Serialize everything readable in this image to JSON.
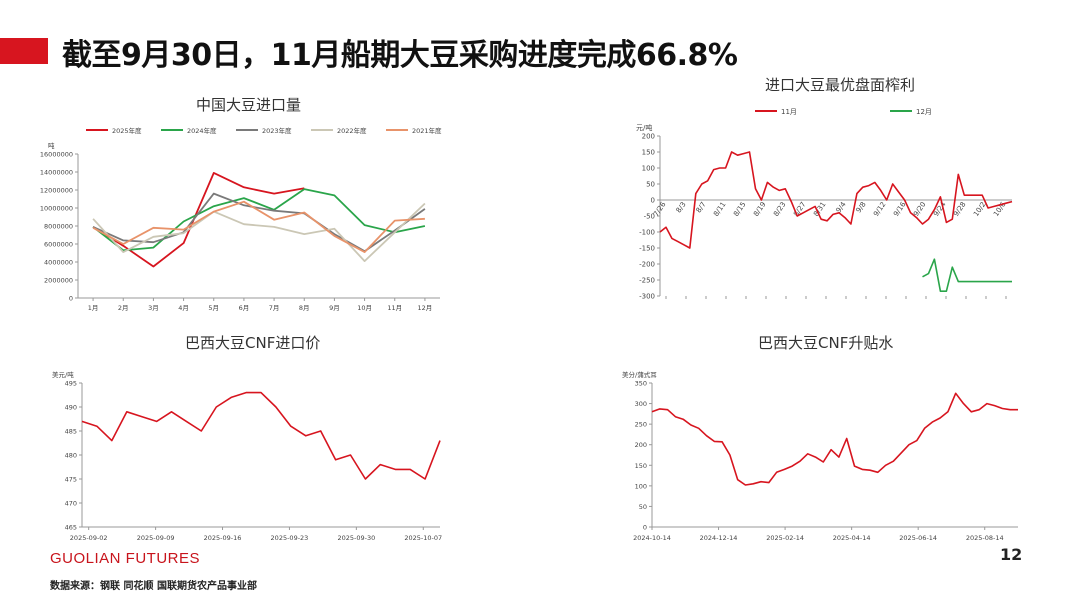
{
  "header": {
    "title": "截至9月30日，11月船期大豆采购进度完成66.8%",
    "accent_color": "#d7151f"
  },
  "footer": {
    "brand": "GUOLIAN FUTURES",
    "source": "数据来源：钢联 同花顺 国联期货农产品事业部",
    "page_number": "12"
  },
  "chart_data": [
    {
      "type": "line",
      "title": "中国大豆进口量",
      "ylabel": "吨",
      "categories": [
        "1月",
        "2月",
        "3月",
        "4月",
        "5月",
        "6月",
        "7月",
        "8月",
        "9月",
        "10月",
        "11月",
        "12月"
      ],
      "ylim": [
        0,
        16000000
      ],
      "yticks": [
        "0",
        "2000000",
        "4000000",
        "6000000",
        "8000000",
        "10000000",
        "12000000",
        "14000000",
        "16000000"
      ],
      "legend": "top",
      "series": [
        {
          "name": "2025年度",
          "color": "#d7151f",
          "values": [
            7900000,
            5800000,
            3500000,
            6100000,
            13900000,
            12300000,
            11600000,
            12200000,
            null,
            null,
            null,
            null
          ]
        },
        {
          "name": "2024年度",
          "color": "#2aa54a",
          "values": [
            7900000,
            5300000,
            5600000,
            8500000,
            10200000,
            11100000,
            9800000,
            12100000,
            11400000,
            8100000,
            7300000,
            8000000
          ]
        },
        {
          "name": "2023年度",
          "color": "#7a7a7a",
          "values": [
            7900000,
            6400000,
            6200000,
            7300000,
            11600000,
            10300000,
            9700000,
            9400000,
            7100000,
            5200000,
            7500000,
            9900000
          ]
        },
        {
          "name": "2022年度",
          "color": "#cbc7b5",
          "values": [
            8800000,
            5100000,
            6800000,
            7200000,
            9600000,
            8200000,
            7900000,
            7100000,
            7700000,
            4100000,
            7300000,
            10500000
          ]
        },
        {
          "name": "2021年度",
          "color": "#e8936a",
          "values": [
            7800000,
            6000000,
            7800000,
            7600000,
            9600000,
            10700000,
            8700000,
            9500000,
            6900000,
            5100000,
            8600000,
            8800000
          ]
        }
      ]
    },
    {
      "type": "line",
      "title": "进口大豆最优盘面榨利",
      "ylabel": "元/吨",
      "ylim": [
        -300,
        200
      ],
      "yticks": [
        "-300",
        "-250",
        "-200",
        "-150",
        "-100",
        "-50",
        "0",
        "50",
        "100",
        "150",
        "200"
      ],
      "xticks": [
        "7/26",
        "8/3",
        "8/7",
        "8/11",
        "8/15",
        "8/19",
        "8/23",
        "8/27",
        "8/31",
        "9/4",
        "9/8",
        "9/12",
        "9/16",
        "9/20",
        "9/24",
        "9/28",
        "10/2",
        "10/6"
      ],
      "legend": "top",
      "series": [
        {
          "name": "11月",
          "color": "#d7151f",
          "values": [
            -100,
            -85,
            -120,
            -130,
            -140,
            -150,
            20,
            50,
            60,
            95,
            100,
            100,
            150,
            140,
            145,
            150,
            35,
            0,
            55,
            40,
            30,
            35,
            -5,
            -50,
            -40,
            -30,
            -20,
            -60,
            -65,
            -45,
            -40,
            -55,
            -75,
            20,
            40,
            45,
            55,
            30,
            0,
            50,
            25,
            0,
            -40,
            -55,
            -75,
            -60,
            -30,
            10,
            -70,
            -60,
            80,
            15,
            15,
            15,
            15,
            -25,
            -20,
            -15,
            -10,
            -5
          ]
        },
        {
          "name": "12月",
          "color": "#2aa54a",
          "values": [
            null,
            null,
            null,
            null,
            null,
            null,
            null,
            null,
            null,
            null,
            null,
            null,
            null,
            null,
            null,
            null,
            null,
            null,
            null,
            null,
            null,
            null,
            null,
            null,
            null,
            null,
            null,
            null,
            null,
            null,
            null,
            null,
            null,
            null,
            null,
            null,
            null,
            null,
            null,
            null,
            null,
            null,
            null,
            null,
            -240,
            -230,
            -185,
            -285,
            -285,
            -210,
            -255,
            -255,
            -255,
            -255,
            -255,
            -255,
            -255,
            -255,
            -255,
            -255
          ]
        }
      ]
    },
    {
      "type": "line",
      "title": "巴西大豆CNF进口价",
      "ylabel": "美元/吨",
      "ylim": [
        465,
        495
      ],
      "yticks": [
        "465",
        "470",
        "475",
        "480",
        "485",
        "490",
        "495"
      ],
      "xticks": [
        "2025-09-02",
        "2025-09-09",
        "2025-09-16",
        "2025-09-23",
        "2025-09-30",
        "2025-10-07"
      ],
      "series": [
        {
          "name": "",
          "color": "#d7151f",
          "values": [
            487,
            486,
            483,
            489,
            488,
            487,
            489,
            487,
            485,
            490,
            492,
            493,
            493,
            490,
            486,
            484,
            485,
            479,
            480,
            475,
            478,
            477,
            477,
            475,
            483
          ]
        }
      ]
    },
    {
      "type": "line",
      "title": "巴西大豆CNF升贴水",
      "ylabel": "美分/蒲式耳",
      "ylim": [
        0,
        350
      ],
      "yticks": [
        "0",
        "50",
        "100",
        "150",
        "200",
        "250",
        "300",
        "350"
      ],
      "xticks": [
        "2024-10-14",
        "2024-12-14",
        "2025-02-14",
        "2025-04-14",
        "2025-06-14",
        "2025-08-14"
      ],
      "series": [
        {
          "name": "",
          "color": "#d7151f",
          "values": [
            280,
            287,
            285,
            268,
            262,
            248,
            240,
            222,
            208,
            207,
            175,
            115,
            102,
            105,
            110,
            108,
            133,
            140,
            148,
            160,
            178,
            170,
            158,
            188,
            170,
            215,
            148,
            140,
            138,
            133,
            150,
            160,
            180,
            200,
            210,
            240,
            255,
            265,
            280,
            325,
            300,
            280,
            285,
            300,
            295,
            288,
            285,
            285
          ]
        }
      ]
    }
  ]
}
